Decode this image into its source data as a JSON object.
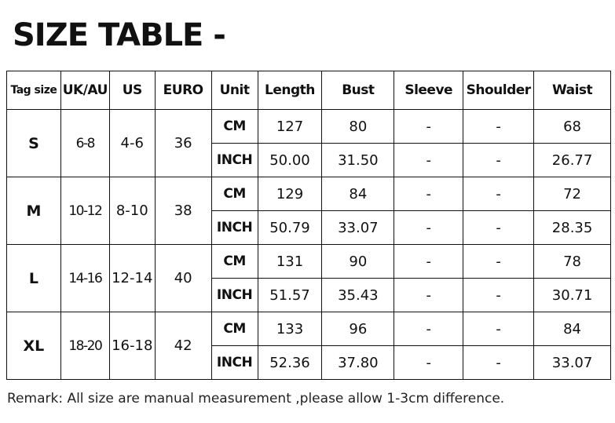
{
  "title": "SIZE TABLE -",
  "headers": [
    "Tag size",
    "UK/AU",
    "US",
    "EURO",
    "Unit",
    "Length",
    "Bust",
    "Sleeve",
    "Shoulder",
    "Waist"
  ],
  "rows": [
    {
      "tag": "S",
      "uk": "6-8",
      "us": "4-6",
      "euro": "36",
      "cm": [
        "CM",
        "127",
        "80",
        "-",
        "-",
        "68"
      ],
      "inch": [
        "INCH",
        "50.00",
        "31.50",
        "-",
        "-",
        "26.77"
      ]
    },
    {
      "tag": "M",
      "uk": "10-12",
      "us": "8-10",
      "euro": "38",
      "cm": [
        "CM",
        "129",
        "84",
        "-",
        "-",
        "72"
      ],
      "inch": [
        "INCH",
        "50.79",
        "33.07",
        "-",
        "-",
        "28.35"
      ]
    },
    {
      "tag": "L",
      "uk": "14-16",
      "us": "12-14",
      "euro": "40",
      "cm": [
        "CM",
        "131",
        "90",
        "-",
        "-",
        "78"
      ],
      "inch": [
        "INCH",
        "51.57",
        "35.43",
        "-",
        "-",
        "30.71"
      ]
    },
    {
      "tag": "XL",
      "uk": "18-20",
      "us": "16-18",
      "euro": "42",
      "cm": [
        "CM",
        "133",
        "96",
        "-",
        "-",
        "84"
      ],
      "inch": [
        "INCH",
        "52.36",
        "37.80",
        "-",
        "-",
        "33.07"
      ]
    }
  ],
  "remark": "Remark: All size are manual measurement ,please allow 1-3cm difference."
}
